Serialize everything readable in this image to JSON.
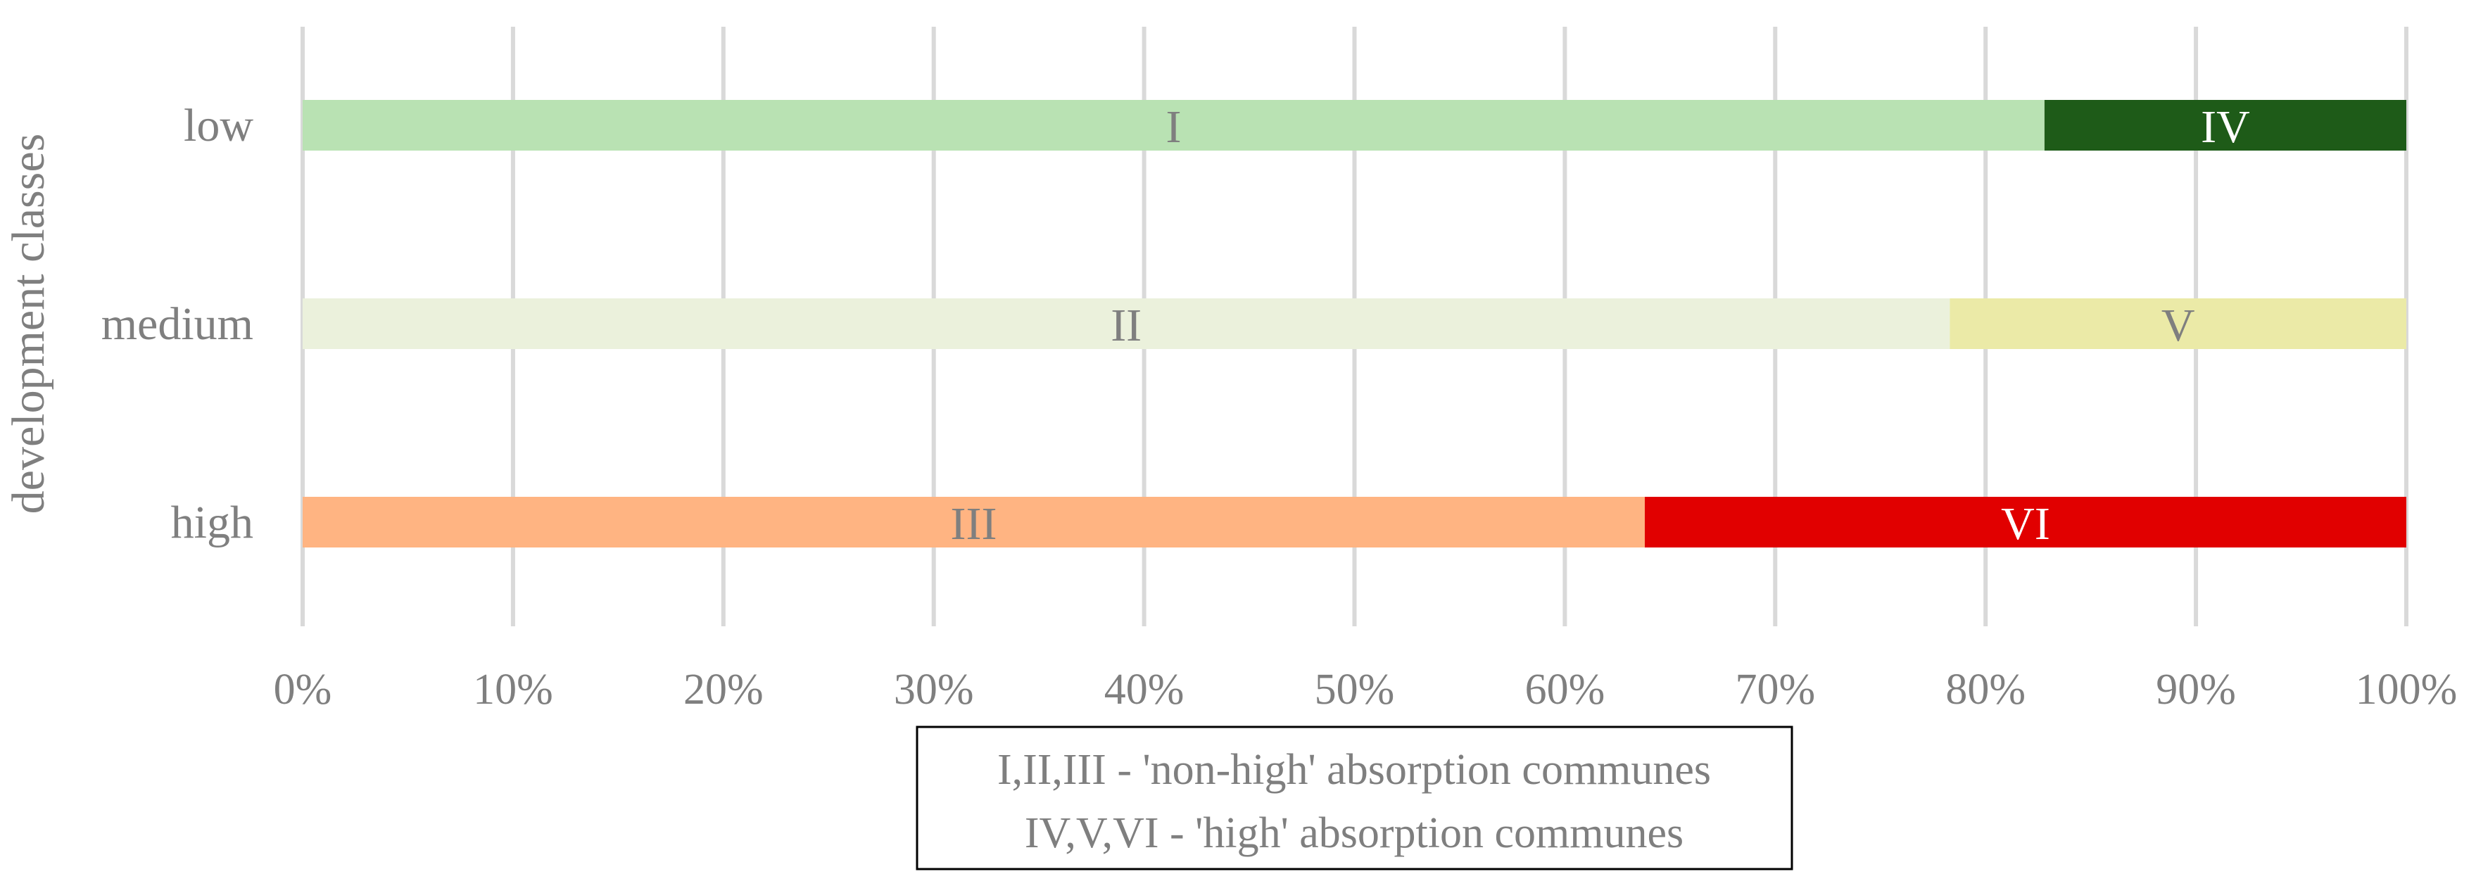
{
  "chart_data": {
    "type": "bar",
    "orientation": "horizontal",
    "stacked": "percent",
    "ylabel": "development classes",
    "xlim": [
      0,
      100
    ],
    "x_ticks": [
      "0%",
      "10%",
      "20%",
      "30%",
      "40%",
      "50%",
      "60%",
      "70%",
      "80%",
      "90%",
      "100%"
    ],
    "categories": [
      "low",
      "medium",
      "high"
    ],
    "segments": [
      {
        "category": "low",
        "label": "I",
        "start": 0,
        "end": 82.8,
        "color": "#b9e2b3",
        "label_color": "#7f7f7f"
      },
      {
        "category": "low",
        "label": "IV",
        "start": 82.8,
        "end": 100,
        "color": "#1e5b18",
        "label_color": "#ffffff"
      },
      {
        "category": "medium",
        "label": "II",
        "start": 0,
        "end": 78.3,
        "color": "#ebf1dc",
        "label_color": "#7f7f7f"
      },
      {
        "category": "medium",
        "label": "V",
        "start": 78.3,
        "end": 100,
        "color": "#ebeaa7",
        "label_color": "#7f7f7f"
      },
      {
        "category": "high",
        "label": "III",
        "start": 0,
        "end": 63.8,
        "color": "#ffb482",
        "label_color": "#7f7f7f"
      },
      {
        "category": "high",
        "label": "VI",
        "start": 63.8,
        "end": 100,
        "color": "#e10000",
        "label_color": "#ffffff"
      }
    ],
    "grid": true,
    "grid_color": "#d9d9d9",
    "legend": {
      "placement": "bottom-center",
      "lines": [
        "I,II,III - 'non-high' absorption communes",
        "IV,V,VI - 'high' absorption communes"
      ]
    }
  }
}
